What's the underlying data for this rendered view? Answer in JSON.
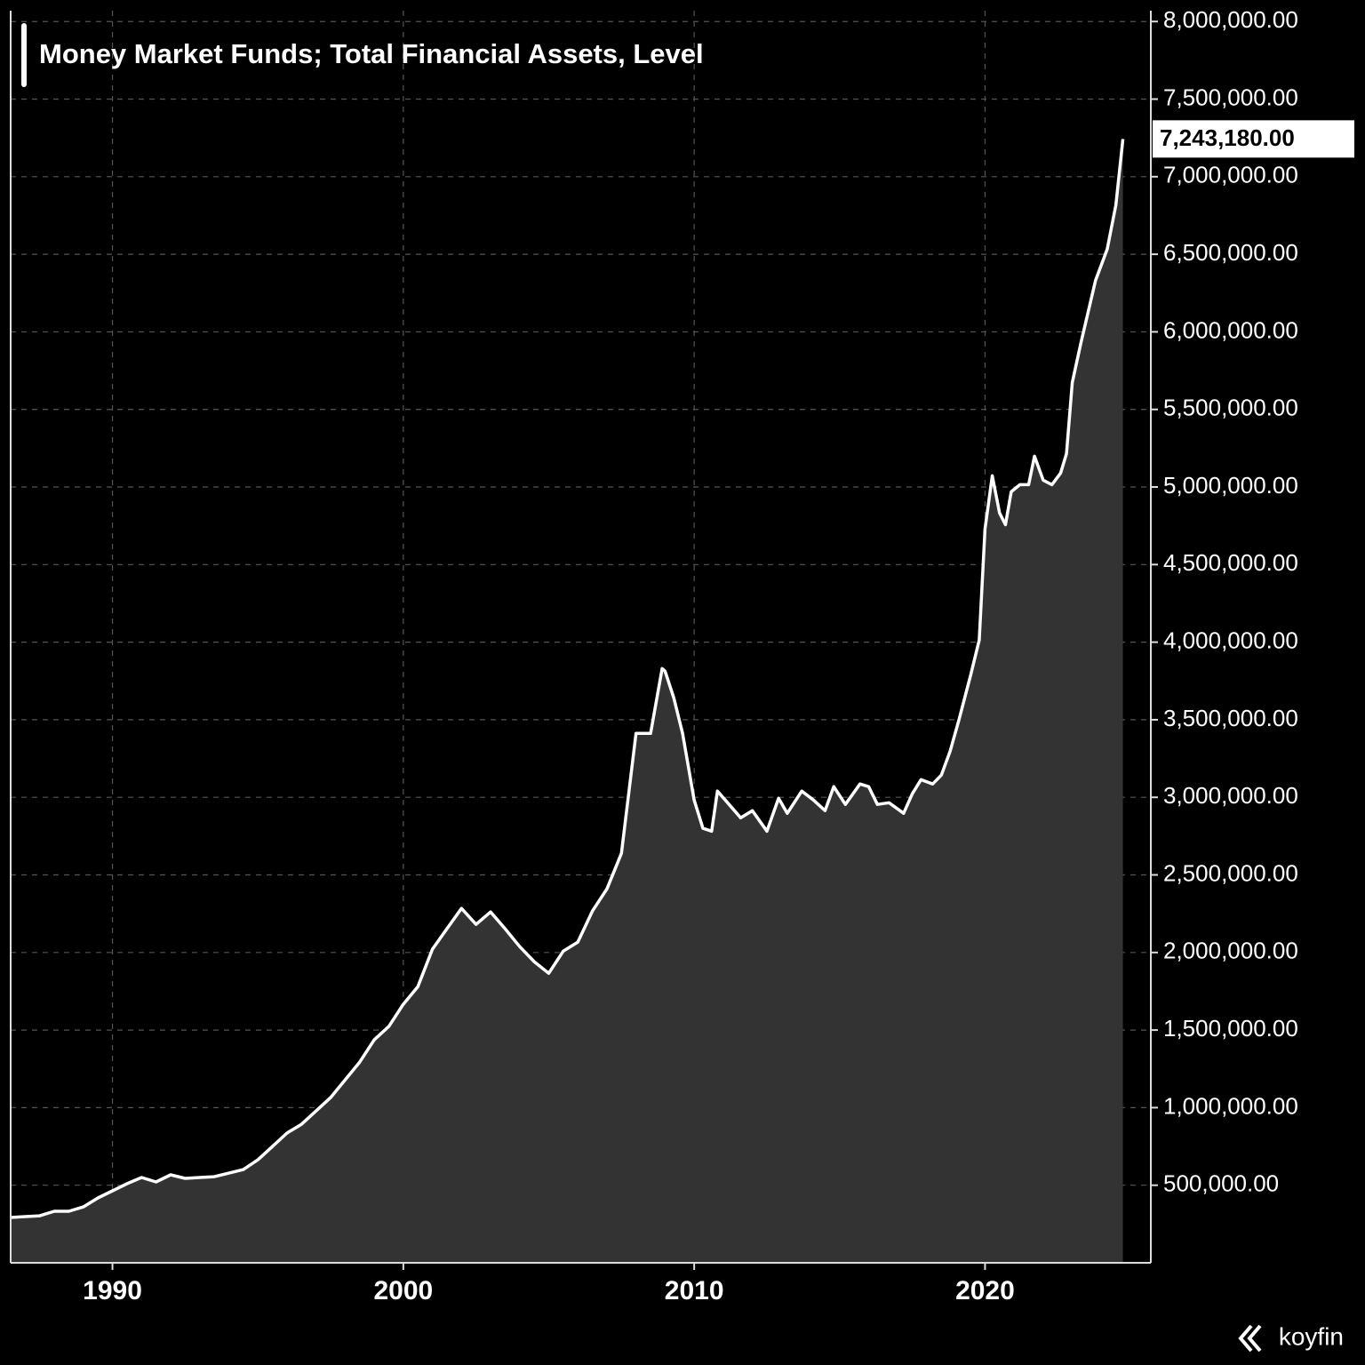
{
  "chart_data": {
    "type": "area",
    "title": "Money Market Funds; Total Financial Assets, Level",
    "source": "koyfin",
    "color": "#ffffff",
    "fill_color": "#333333",
    "grid": true,
    "xlim": [
      1986.5,
      2025.7
    ],
    "xticks": [
      1990,
      2000,
      2010,
      2020
    ],
    "ylim": [
      0,
      8070000
    ],
    "yticks": [
      {
        "value": 500000,
        "label": "500,000.00"
      },
      {
        "value": 1000000,
        "label": "1,000,000.00"
      },
      {
        "value": 1500000,
        "label": "1,500,000.00"
      },
      {
        "value": 2000000,
        "label": "2,000,000.00"
      },
      {
        "value": 2500000,
        "label": "2,500,000.00"
      },
      {
        "value": 3000000,
        "label": "3,000,000.00"
      },
      {
        "value": 3500000,
        "label": "3,500,000.00"
      },
      {
        "value": 4000000,
        "label": "4,000,000.00"
      },
      {
        "value": 4500000,
        "label": "4,500,000.00"
      },
      {
        "value": 5000000,
        "label": "5,000,000.00"
      },
      {
        "value": 5500000,
        "label": "5,500,000.00"
      },
      {
        "value": 6000000,
        "label": "6,000,000.00"
      },
      {
        "value": 6500000,
        "label": "6,500,000.00"
      },
      {
        "value": 7000000,
        "label": "7,000,000.00"
      },
      {
        "value": 7500000,
        "label": "7,500,000.00"
      },
      {
        "value": 8000000,
        "label": "8,000,000.00"
      }
    ],
    "x": [
      1986.5,
      1987.0,
      1987.5,
      1988.0,
      1988.5,
      1989.0,
      1989.5,
      1990.0,
      1990.5,
      1991.0,
      1991.5,
      1992.0,
      1992.5,
      1993.0,
      1993.5,
      1994.0,
      1994.5,
      1995.0,
      1995.5,
      1996.0,
      1996.5,
      1997.0,
      1997.5,
      1998.0,
      1998.5,
      1999.0,
      1999.5,
      2000.0,
      2000.5,
      2001.0,
      2001.5,
      2002.0,
      2002.5,
      2003.0,
      2003.5,
      2004.0,
      2004.5,
      2005.0,
      2005.5,
      2006.0,
      2006.5,
      2007.0,
      2007.5,
      2008.0,
      2008.5,
      2008.9,
      2009.0,
      2009.3,
      2009.6,
      2010.0,
      2010.3,
      2010.6,
      2010.8,
      2011.2,
      2011.6,
      2012.0,
      2012.5,
      2012.9,
      2013.2,
      2013.7,
      2014.1,
      2014.5,
      2014.8,
      2015.2,
      2015.7,
      2016.0,
      2016.3,
      2016.7,
      2017.2,
      2017.5,
      2017.8,
      2018.2,
      2018.5,
      2018.8,
      2019.1,
      2019.5,
      2019.8,
      2020.0,
      2020.25,
      2020.5,
      2020.7,
      2020.9,
      2021.2,
      2021.5,
      2021.7,
      2022.0,
      2022.3,
      2022.6,
      2022.8,
      2023.0,
      2023.3,
      2023.8,
      2024.2,
      2024.5,
      2024.74
    ],
    "values": [
      292000,
      298000,
      303000,
      332000,
      332000,
      360000,
      418000,
      464000,
      510000,
      550000,
      521000,
      567000,
      544000,
      550000,
      555000,
      578000,
      601000,
      664000,
      750000,
      836000,
      893000,
      979000,
      1065000,
      1179000,
      1294000,
      1437000,
      1523000,
      1666000,
      1780000,
      2021000,
      2153000,
      2284000,
      2181000,
      2261000,
      2153000,
      2038000,
      1941000,
      1866000,
      2009000,
      2067000,
      2267000,
      2410000,
      2639000,
      3412000,
      3412000,
      3830000,
      3813000,
      3641000,
      3412000,
      2983000,
      2800000,
      2782000,
      3040000,
      2954000,
      2868000,
      2914000,
      2782000,
      2994000,
      2897000,
      3040000,
      2983000,
      2914000,
      3069000,
      2954000,
      3086000,
      3069000,
      2954000,
      2965000,
      2897000,
      3023000,
      3114000,
      3086000,
      3143000,
      3298000,
      3498000,
      3784000,
      4013000,
      4729000,
      5072000,
      4832000,
      4757000,
      4969000,
      5015000,
      5015000,
      5198000,
      5044000,
      5015000,
      5090000,
      5215000,
      5673000,
      5931000,
      6332000,
      6532000,
      6818000,
      7243180
    ],
    "value_labels": [
      null,
      null,
      null,
      null,
      null,
      null,
      null,
      null,
      null,
      null,
      null,
      null,
      null,
      null,
      null,
      null,
      null,
      null,
      null,
      null,
      null,
      null,
      null,
      null,
      null,
      null,
      null,
      null,
      null,
      null,
      null,
      null,
      null,
      null,
      null,
      null,
      null,
      null,
      null,
      null,
      null,
      null,
      null,
      null,
      null,
      null,
      null,
      null,
      null,
      null,
      null,
      null,
      null,
      null,
      null,
      null,
      null,
      null,
      null,
      null,
      null,
      null,
      null,
      null,
      null,
      null,
      null,
      null,
      null,
      null,
      null,
      null,
      null,
      null,
      null,
      null,
      null,
      null,
      null,
      null,
      null,
      null,
      null,
      null,
      null,
      null,
      null,
      null,
      null,
      null,
      null,
      null,
      null,
      null,
      "7,243,180.00"
    ]
  }
}
